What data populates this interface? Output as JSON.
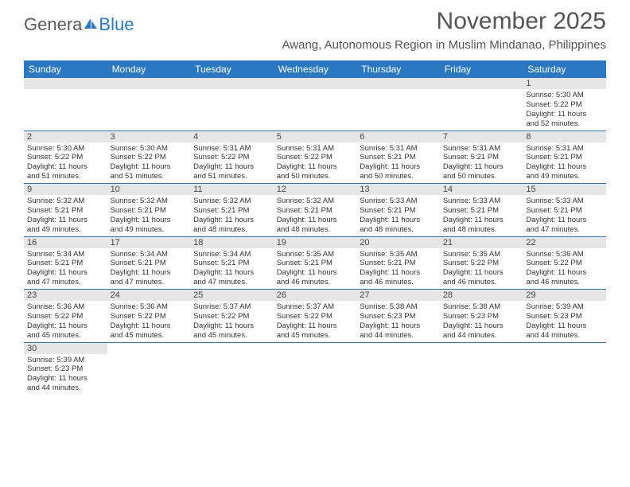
{
  "logo": {
    "part1": "Genera",
    "part2": "Blue",
    "icon_color": "#2a78c0"
  },
  "title": "November 2025",
  "subtitle": "Awang, Autonomous Region in Muslim Mindanao, Philippines",
  "header_bg": "#2a78c0",
  "daynum_bg": "#e6e6e6",
  "weekdays": [
    "Sunday",
    "Monday",
    "Tuesday",
    "Wednesday",
    "Thursday",
    "Friday",
    "Saturday"
  ],
  "weeks": [
    [
      null,
      null,
      null,
      null,
      null,
      null,
      {
        "n": "1",
        "sr": "Sunrise: 5:30 AM",
        "ss": "Sunset: 5:22 PM",
        "d1": "Daylight: 11 hours",
        "d2": "and 52 minutes."
      }
    ],
    [
      {
        "n": "2",
        "sr": "Sunrise: 5:30 AM",
        "ss": "Sunset: 5:22 PM",
        "d1": "Daylight: 11 hours",
        "d2": "and 51 minutes."
      },
      {
        "n": "3",
        "sr": "Sunrise: 5:30 AM",
        "ss": "Sunset: 5:22 PM",
        "d1": "Daylight: 11 hours",
        "d2": "and 51 minutes."
      },
      {
        "n": "4",
        "sr": "Sunrise: 5:31 AM",
        "ss": "Sunset: 5:22 PM",
        "d1": "Daylight: 11 hours",
        "d2": "and 51 minutes."
      },
      {
        "n": "5",
        "sr": "Sunrise: 5:31 AM",
        "ss": "Sunset: 5:22 PM",
        "d1": "Daylight: 11 hours",
        "d2": "and 50 minutes."
      },
      {
        "n": "6",
        "sr": "Sunrise: 5:31 AM",
        "ss": "Sunset: 5:21 PM",
        "d1": "Daylight: 11 hours",
        "d2": "and 50 minutes."
      },
      {
        "n": "7",
        "sr": "Sunrise: 5:31 AM",
        "ss": "Sunset: 5:21 PM",
        "d1": "Daylight: 11 hours",
        "d2": "and 50 minutes."
      },
      {
        "n": "8",
        "sr": "Sunrise: 5:31 AM",
        "ss": "Sunset: 5:21 PM",
        "d1": "Daylight: 11 hours",
        "d2": "and 49 minutes."
      }
    ],
    [
      {
        "n": "9",
        "sr": "Sunrise: 5:32 AM",
        "ss": "Sunset: 5:21 PM",
        "d1": "Daylight: 11 hours",
        "d2": "and 49 minutes."
      },
      {
        "n": "10",
        "sr": "Sunrise: 5:32 AM",
        "ss": "Sunset: 5:21 PM",
        "d1": "Daylight: 11 hours",
        "d2": "and 49 minutes."
      },
      {
        "n": "11",
        "sr": "Sunrise: 5:32 AM",
        "ss": "Sunset: 5:21 PM",
        "d1": "Daylight: 11 hours",
        "d2": "and 48 minutes."
      },
      {
        "n": "12",
        "sr": "Sunrise: 5:32 AM",
        "ss": "Sunset: 5:21 PM",
        "d1": "Daylight: 11 hours",
        "d2": "and 48 minutes."
      },
      {
        "n": "13",
        "sr": "Sunrise: 5:33 AM",
        "ss": "Sunset: 5:21 PM",
        "d1": "Daylight: 11 hours",
        "d2": "and 48 minutes."
      },
      {
        "n": "14",
        "sr": "Sunrise: 5:33 AM",
        "ss": "Sunset: 5:21 PM",
        "d1": "Daylight: 11 hours",
        "d2": "and 48 minutes."
      },
      {
        "n": "15",
        "sr": "Sunrise: 5:33 AM",
        "ss": "Sunset: 5:21 PM",
        "d1": "Daylight: 11 hours",
        "d2": "and 47 minutes."
      }
    ],
    [
      {
        "n": "16",
        "sr": "Sunrise: 5:34 AM",
        "ss": "Sunset: 5:21 PM",
        "d1": "Daylight: 11 hours",
        "d2": "and 47 minutes."
      },
      {
        "n": "17",
        "sr": "Sunrise: 5:34 AM",
        "ss": "Sunset: 5:21 PM",
        "d1": "Daylight: 11 hours",
        "d2": "and 47 minutes."
      },
      {
        "n": "18",
        "sr": "Sunrise: 5:34 AM",
        "ss": "Sunset: 5:21 PM",
        "d1": "Daylight: 11 hours",
        "d2": "and 47 minutes."
      },
      {
        "n": "19",
        "sr": "Sunrise: 5:35 AM",
        "ss": "Sunset: 5:21 PM",
        "d1": "Daylight: 11 hours",
        "d2": "and 46 minutes."
      },
      {
        "n": "20",
        "sr": "Sunrise: 5:35 AM",
        "ss": "Sunset: 5:21 PM",
        "d1": "Daylight: 11 hours",
        "d2": "and 46 minutes."
      },
      {
        "n": "21",
        "sr": "Sunrise: 5:35 AM",
        "ss": "Sunset: 5:22 PM",
        "d1": "Daylight: 11 hours",
        "d2": "and 46 minutes."
      },
      {
        "n": "22",
        "sr": "Sunrise: 5:36 AM",
        "ss": "Sunset: 5:22 PM",
        "d1": "Daylight: 11 hours",
        "d2": "and 46 minutes."
      }
    ],
    [
      {
        "n": "23",
        "sr": "Sunrise: 5:36 AM",
        "ss": "Sunset: 5:22 PM",
        "d1": "Daylight: 11 hours",
        "d2": "and 45 minutes."
      },
      {
        "n": "24",
        "sr": "Sunrise: 5:36 AM",
        "ss": "Sunset: 5:22 PM",
        "d1": "Daylight: 11 hours",
        "d2": "and 45 minutes."
      },
      {
        "n": "25",
        "sr": "Sunrise: 5:37 AM",
        "ss": "Sunset: 5:22 PM",
        "d1": "Daylight: 11 hours",
        "d2": "and 45 minutes."
      },
      {
        "n": "26",
        "sr": "Sunrise: 5:37 AM",
        "ss": "Sunset: 5:22 PM",
        "d1": "Daylight: 11 hours",
        "d2": "and 45 minutes."
      },
      {
        "n": "27",
        "sr": "Sunrise: 5:38 AM",
        "ss": "Sunset: 5:23 PM",
        "d1": "Daylight: 11 hours",
        "d2": "and 44 minutes."
      },
      {
        "n": "28",
        "sr": "Sunrise: 5:38 AM",
        "ss": "Sunset: 5:23 PM",
        "d1": "Daylight: 11 hours",
        "d2": "and 44 minutes."
      },
      {
        "n": "29",
        "sr": "Sunrise: 5:39 AM",
        "ss": "Sunset: 5:23 PM",
        "d1": "Daylight: 11 hours",
        "d2": "and 44 minutes."
      }
    ],
    [
      {
        "n": "30",
        "sr": "Sunrise: 5:39 AM",
        "ss": "Sunset: 5:23 PM",
        "d1": "Daylight: 11 hours",
        "d2": "and 44 minutes."
      },
      null,
      null,
      null,
      null,
      null,
      null
    ]
  ]
}
